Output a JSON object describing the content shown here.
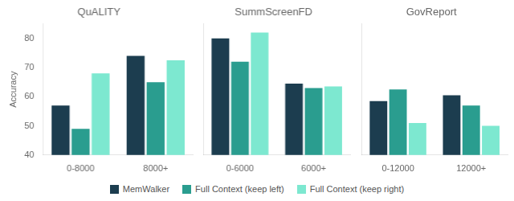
{
  "chart_data": [
    {
      "type": "bar",
      "title": "QuALITY",
      "categories": [
        "0-8000",
        "8000+"
      ],
      "series": [
        {
          "name": "MemWalker",
          "color": "#1c3d4f",
          "values": [
            57,
            74
          ]
        },
        {
          "name": "Full Context (keep left)",
          "color": "#2a9d8f",
          "values": [
            49,
            65
          ]
        },
        {
          "name": "Full Context (keep right)",
          "color": "#7de8d0",
          "values": [
            68,
            72.5
          ]
        }
      ],
      "ylabel": "Accuracy",
      "ylim": [
        40,
        85
      ],
      "yticks": [
        40,
        50,
        60,
        70,
        80
      ],
      "grid": false,
      "legend": "bottom"
    },
    {
      "type": "bar",
      "title": "SummScreenFD",
      "categories": [
        "0-6000",
        "6000+"
      ],
      "series": [
        {
          "name": "MemWalker",
          "color": "#1c3d4f",
          "values": [
            80,
            64.5
          ]
        },
        {
          "name": "Full Context (keep left)",
          "color": "#2a9d8f",
          "values": [
            72,
            63
          ]
        },
        {
          "name": "Full Context (keep right)",
          "color": "#7de8d0",
          "values": [
            82,
            63.5
          ]
        }
      ],
      "ylim": [
        40,
        85
      ],
      "yticks": [
        40,
        50,
        60,
        70,
        80
      ],
      "grid": false,
      "legend": "bottom",
      "tick_labels": "x"
    },
    {
      "type": "bar",
      "title": "GovReport",
      "categories": [
        "0-12000",
        "12000+"
      ],
      "series": [
        {
          "name": "MemWalker",
          "color": "#1c3d4f",
          "values": [
            58.5,
            60.5
          ]
        },
        {
          "name": "Full Context (keep left)",
          "color": "#2a9d8f",
          "values": [
            62.5,
            57
          ]
        },
        {
          "name": "Full Context (keep right)",
          "color": "#7de8d0",
          "values": [
            51,
            50
          ]
        }
      ],
      "ylim": [
        40,
        85
      ],
      "yticks": [
        40,
        50,
        60,
        70,
        80
      ],
      "grid": false,
      "legend": "bottom",
      "tick_labels": "x"
    }
  ]
}
